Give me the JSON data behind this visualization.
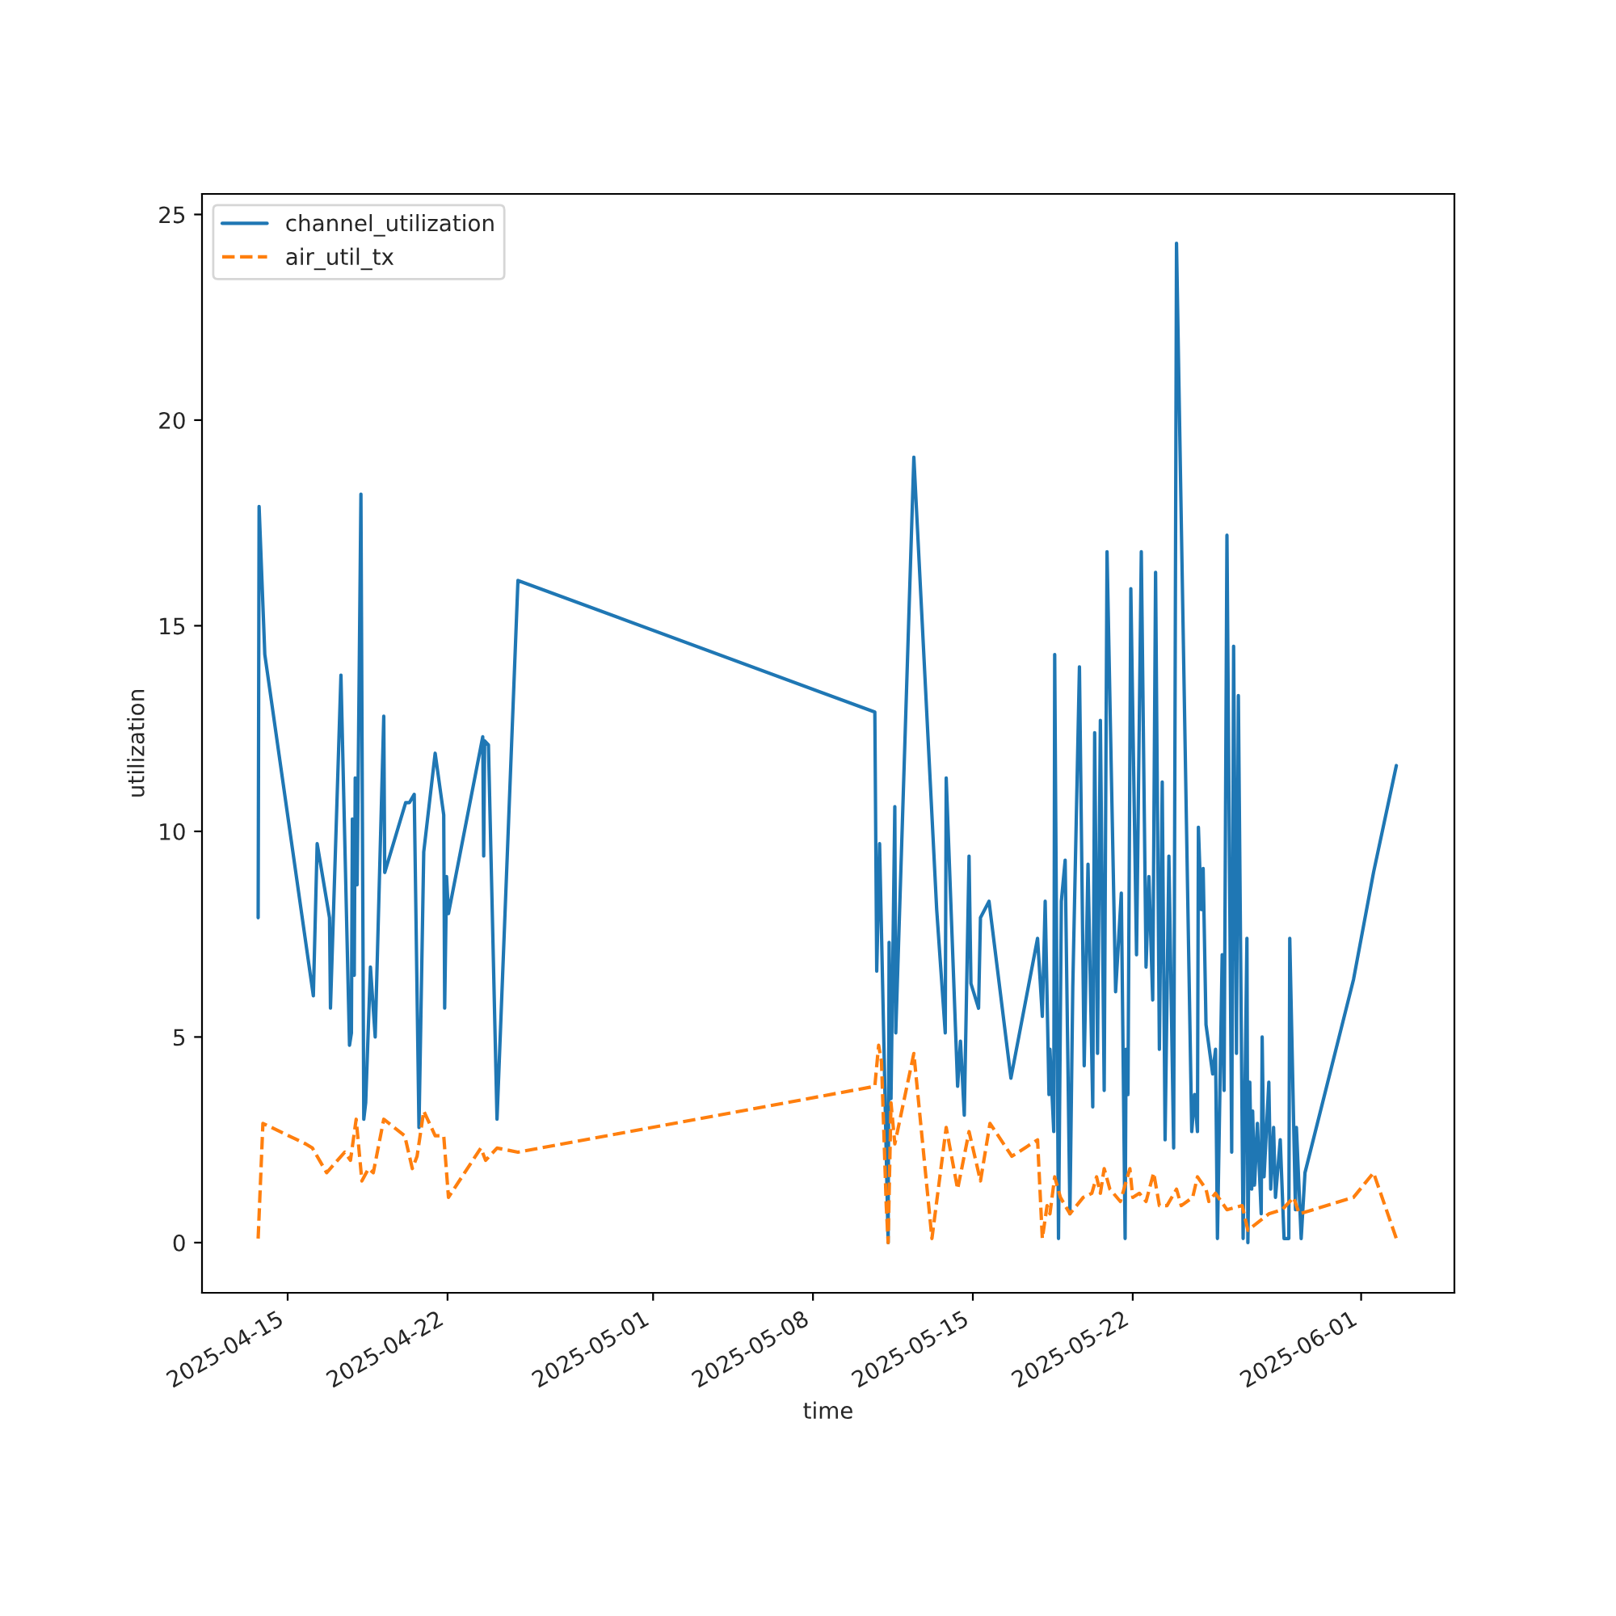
{
  "chart_data": {
    "type": "line",
    "xlabel": "time",
    "ylabel": "utilization",
    "xlim": [
      "2025-04-11T06:00",
      "2025-06-05T02:00"
    ],
    "ylim": [
      -1.22,
      25.5
    ],
    "xticks": [
      "2025-04-15",
      "2025-04-22",
      "2025-05-01",
      "2025-05-08",
      "2025-05-15",
      "2025-05-22",
      "2025-06-01"
    ],
    "yticks": [
      0,
      5,
      10,
      15,
      20,
      25
    ],
    "grid": false,
    "legend": "top left",
    "marker": "none",
    "series": [
      {
        "name": "channel_utilization",
        "color": "#1f77b4",
        "line_style": "solid",
        "x": [
          "2025-04-13T17:00",
          "2025-04-13T18:00",
          "2025-04-14T00:00",
          "2025-04-16T03:00",
          "2025-04-16T07:00",
          "2025-04-16T20:00",
          "2025-04-16T21:00",
          "2025-04-17T08:00",
          "2025-04-17T17:00",
          "2025-04-17T19:00",
          "2025-04-17T20:00",
          "2025-04-17T22:00",
          "2025-04-17T23:00",
          "2025-04-18T01:00",
          "2025-04-18T05:00",
          "2025-04-18T08:00",
          "2025-04-18T10:00",
          "2025-04-18T15:00",
          "2025-04-18T20:00",
          "2025-04-19T05:00",
          "2025-04-19T06:00",
          "2025-04-20T04:00",
          "2025-04-20T08:00",
          "2025-04-20T13:00",
          "2025-04-20T18:00",
          "2025-04-20T23:00",
          "2025-04-21T11:00",
          "2025-04-21T20:00",
          "2025-04-21T21:00",
          "2025-04-21T23:00",
          "2025-04-22T01:00",
          "2025-04-23T13:00",
          "2025-04-23T14:00",
          "2025-04-23T15:00",
          "2025-04-23T19:00",
          "2025-04-24T04:00",
          "2025-04-25T02:00",
          "2025-05-10T17:00",
          "2025-05-10T19:00",
          "2025-05-10T22:00",
          "2025-05-11T07:00",
          "2025-05-11T08:00",
          "2025-05-11T10:00",
          "2025-05-11T14:00",
          "2025-05-11T15:00",
          "2025-05-12T10:00",
          "2025-05-13T10:00",
          "2025-05-13T19:00",
          "2025-05-13T20:00",
          "2025-05-14T08:00",
          "2025-05-14T11:00",
          "2025-05-14T15:00",
          "2025-05-14T20:00",
          "2025-05-14T22:00",
          "2025-05-15T06:00",
          "2025-05-15T08:00",
          "2025-05-15T17:00",
          "2025-05-16T16:00",
          "2025-05-17T20:00",
          "2025-05-18T01:00",
          "2025-05-18T04:00",
          "2025-05-18T08:00",
          "2025-05-18T09:00",
          "2025-05-18T13:00",
          "2025-05-18T14:00",
          "2025-05-18T18:00",
          "2025-05-18T21:00",
          "2025-05-19T01:00",
          "2025-05-19T06:00",
          "2025-05-19T09:00",
          "2025-05-19T16:00",
          "2025-05-19T21:00",
          "2025-05-20T01:00",
          "2025-05-20T06:00",
          "2025-05-20T08:00",
          "2025-05-20T11:00",
          "2025-05-20T14:00",
          "2025-05-20T18:00",
          "2025-05-20T21:00",
          "2025-05-21T06:00",
          "2025-05-21T12:00",
          "2025-05-21T16:00",
          "2025-05-21T17:00",
          "2025-05-21T19:00",
          "2025-05-21T22:00",
          "2025-05-22T04:00",
          "2025-05-22T09:00",
          "2025-05-22T14:00",
          "2025-05-22T17:00",
          "2025-05-22T21:00",
          "2025-05-23T00:00",
          "2025-05-23T04:00",
          "2025-05-23T07:00",
          "2025-05-23T10:00",
          "2025-05-23T14:00",
          "2025-05-23T19:00",
          "2025-05-23T22:00",
          "2025-05-24T14:00",
          "2025-05-24T17:00",
          "2025-05-24T20:00",
          "2025-05-24T21:00",
          "2025-05-25T00:00",
          "2025-05-25T02:00",
          "2025-05-25T05:00",
          "2025-05-25T12:00",
          "2025-05-25T15:00",
          "2025-05-25T17:00",
          "2025-05-25T22:00",
          "2025-05-26T00:00",
          "2025-05-26T03:00",
          "2025-05-26T08:00",
          "2025-05-26T10:00",
          "2025-05-26T13:00",
          "2025-05-26T15:00",
          "2025-05-26T20:00",
          "2025-05-27T00:00",
          "2025-05-27T01:00",
          "2025-05-27T03:00",
          "2025-05-27T05:00",
          "2025-05-27T06:00",
          "2025-05-27T08:00",
          "2025-05-27T11:00",
          "2025-05-27T15:00",
          "2025-05-27T16:00",
          "2025-05-27T18:00",
          "2025-05-27T23:00",
          "2025-05-28T01:00",
          "2025-05-28T04:00",
          "2025-05-28T06:00",
          "2025-05-28T11:00",
          "2025-05-28T15:00",
          "2025-05-28T20:00",
          "2025-05-28T21:00",
          "2025-05-29T03:00",
          "2025-05-29T04:00",
          "2025-05-29T09:00",
          "2025-05-29T13:00",
          "2025-05-31T16:00",
          "2025-06-01T13:00",
          "2025-06-02T13:00"
        ],
        "values": [
          7.9,
          17.9,
          14.3,
          6.0,
          9.7,
          7.9,
          5.7,
          13.8,
          4.8,
          5.1,
          10.3,
          6.5,
          11.3,
          8.7,
          18.2,
          3.0,
          3.4,
          6.7,
          5.0,
          12.8,
          9.0,
          10.7,
          10.7,
          10.9,
          2.8,
          9.5,
          11.9,
          10.4,
          5.7,
          8.9,
          8.0,
          12.3,
          9.4,
          12.2,
          12.1,
          3.0,
          16.1,
          12.9,
          6.6,
          9.7,
          0.0,
          7.3,
          3.5,
          10.6,
          5.1,
          19.1,
          8.1,
          5.1,
          11.3,
          3.8,
          4.9,
          3.1,
          9.4,
          6.3,
          5.7,
          7.9,
          8.3,
          4.0,
          7.4,
          5.5,
          8.3,
          3.6,
          4.7,
          2.7,
          14.3,
          0.1,
          8.3,
          9.3,
          0.7,
          6.2,
          14.0,
          4.3,
          9.2,
          3.3,
          12.4,
          4.6,
          12.7,
          3.7,
          16.8,
          6.1,
          8.5,
          0.1,
          4.7,
          3.6,
          15.9,
          7.0,
          16.8,
          6.7,
          8.9,
          5.9,
          16.3,
          4.7,
          11.2,
          2.5,
          9.4,
          2.3,
          24.3,
          2.7,
          3.6,
          2.7,
          10.1,
          8.1,
          9.1,
          5.3,
          4.1,
          4.7,
          0.1,
          7.0,
          3.7,
          17.2,
          2.2,
          14.5,
          4.6,
          13.3,
          0.1,
          7.4,
          0.0,
          3.9,
          1.3,
          3.2,
          1.4,
          2.9,
          0.7,
          5.0,
          1.6,
          3.9,
          1.3,
          2.8,
          1.1,
          2.5,
          0.1,
          0.1,
          7.4,
          0.8,
          2.8,
          0.1,
          1.7,
          6.4,
          9.0,
          11.6
        ]
      },
      {
        "name": "air_util_tx",
        "color": "#ff7f0e",
        "line_style": "dashed",
        "x": [
          "2025-04-13T17:00",
          "2025-04-13T22:00",
          "2025-04-15T19:00",
          "2025-04-16T02:00",
          "2025-04-16T17:00",
          "2025-04-17T12:00",
          "2025-04-17T18:00",
          "2025-04-18T00:00",
          "2025-04-18T06:00",
          "2025-04-18T13:00",
          "2025-04-18T18:00",
          "2025-04-19T05:00",
          "2025-04-20T03:00",
          "2025-04-20T11:00",
          "2025-04-20T16:00",
          "2025-04-20T23:00",
          "2025-04-21T11:00",
          "2025-04-21T20:00",
          "2025-04-22T01:00",
          "2025-04-23T11:00",
          "2025-04-23T16:00",
          "2025-04-24T04:00",
          "2025-04-25T02:00",
          "2025-05-10T17:00",
          "2025-05-10T21:00",
          "2025-05-11T00:00",
          "2025-05-11T05:00",
          "2025-05-11T07:00",
          "2025-05-11T10:00",
          "2025-05-11T14:00",
          "2025-05-12T10:00",
          "2025-05-13T05:00",
          "2025-05-13T20:00",
          "2025-05-14T08:00",
          "2025-05-14T20:00",
          "2025-05-15T08:00",
          "2025-05-15T18:00",
          "2025-05-16T17:00",
          "2025-05-17T20:00",
          "2025-05-18T01:00",
          "2025-05-18T06:00",
          "2025-05-18T09:00",
          "2025-05-18T14:00",
          "2025-05-18T20:00",
          "2025-05-19T06:00",
          "2025-05-19T20:00",
          "2025-05-20T05:00",
          "2025-05-20T10:00",
          "2025-05-20T14:00",
          "2025-05-20T18:00",
          "2025-05-21T00:00",
          "2025-05-21T11:00",
          "2025-05-21T21:00",
          "2025-05-22T00:00",
          "2025-05-22T07:00",
          "2025-05-22T14:00",
          "2025-05-22T22:00",
          "2025-05-23T04:00",
          "2025-05-23T12:00",
          "2025-05-23T22:00",
          "2025-05-24T03:00",
          "2025-05-24T15:00",
          "2025-05-24T20:00",
          "2025-05-25T05:00",
          "2025-05-25T08:00",
          "2025-05-25T15:00",
          "2025-05-26T03:00",
          "2025-05-26T19:00",
          "2025-05-27T01:00",
          "2025-05-27T23:00",
          "2025-05-28T13:00",
          "2025-05-29T01:00",
          "2025-05-29T07:00",
          "2025-05-31T16:00",
          "2025-06-01T13:00",
          "2025-06-02T13:00"
        ],
        "values": [
          0.1,
          2.9,
          2.4,
          2.3,
          1.7,
          2.2,
          2.0,
          3.0,
          1.5,
          1.8,
          1.7,
          3.0,
          2.6,
          1.8,
          2.1,
          3.2,
          2.6,
          2.6,
          1.1,
          2.3,
          2.0,
          2.3,
          2.2,
          3.8,
          4.8,
          4.4,
          0.9,
          0.0,
          3.4,
          2.4,
          4.6,
          0.1,
          2.8,
          1.3,
          2.7,
          1.5,
          2.9,
          2.1,
          2.5,
          0.1,
          0.9,
          0.7,
          1.6,
          1.1,
          0.7,
          1.1,
          1.2,
          1.6,
          1.2,
          1.8,
          1.3,
          1.0,
          1.8,
          1.1,
          1.2,
          1.0,
          1.7,
          0.9,
          0.9,
          1.3,
          0.9,
          1.1,
          1.6,
          1.3,
          1.0,
          1.2,
          0.8,
          0.9,
          0.3,
          0.7,
          0.8,
          1.1,
          0.7,
          1.1,
          1.7,
          0.1
        ]
      }
    ]
  }
}
